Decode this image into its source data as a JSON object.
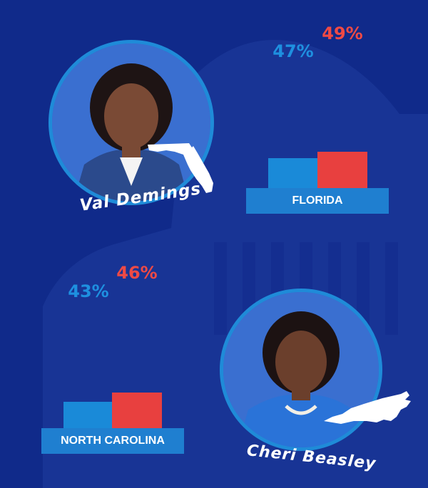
{
  "colors": {
    "background": "#102a8a",
    "democrat_blue": "#1a8ad8",
    "republican_red": "#e8403f",
    "label_bg": "#1f7fd0",
    "blue_text": "#1e90e0",
    "red_text": "#ef4a45"
  },
  "candidates": [
    {
      "name": "Val Demings",
      "state": "florida"
    },
    {
      "name": "Cheri Beasley",
      "state": "north-carolina"
    }
  ],
  "chart_data": [
    {
      "type": "bar",
      "categories": [
        "FLORIDA"
      ],
      "series": [
        {
          "values": [
            47
          ],
          "labels": [
            "47%"
          ]
        },
        {
          "values": [
            49
          ],
          "labels": [
            "49%"
          ]
        }
      ]
    },
    {
      "type": "bar",
      "categories": [
        "NORTH CAROLINA"
      ],
      "series": [
        {
          "values": [
            43
          ],
          "labels": [
            "43%"
          ]
        },
        {
          "values": [
            46
          ],
          "labels": [
            "46%"
          ]
        }
      ]
    }
  ]
}
